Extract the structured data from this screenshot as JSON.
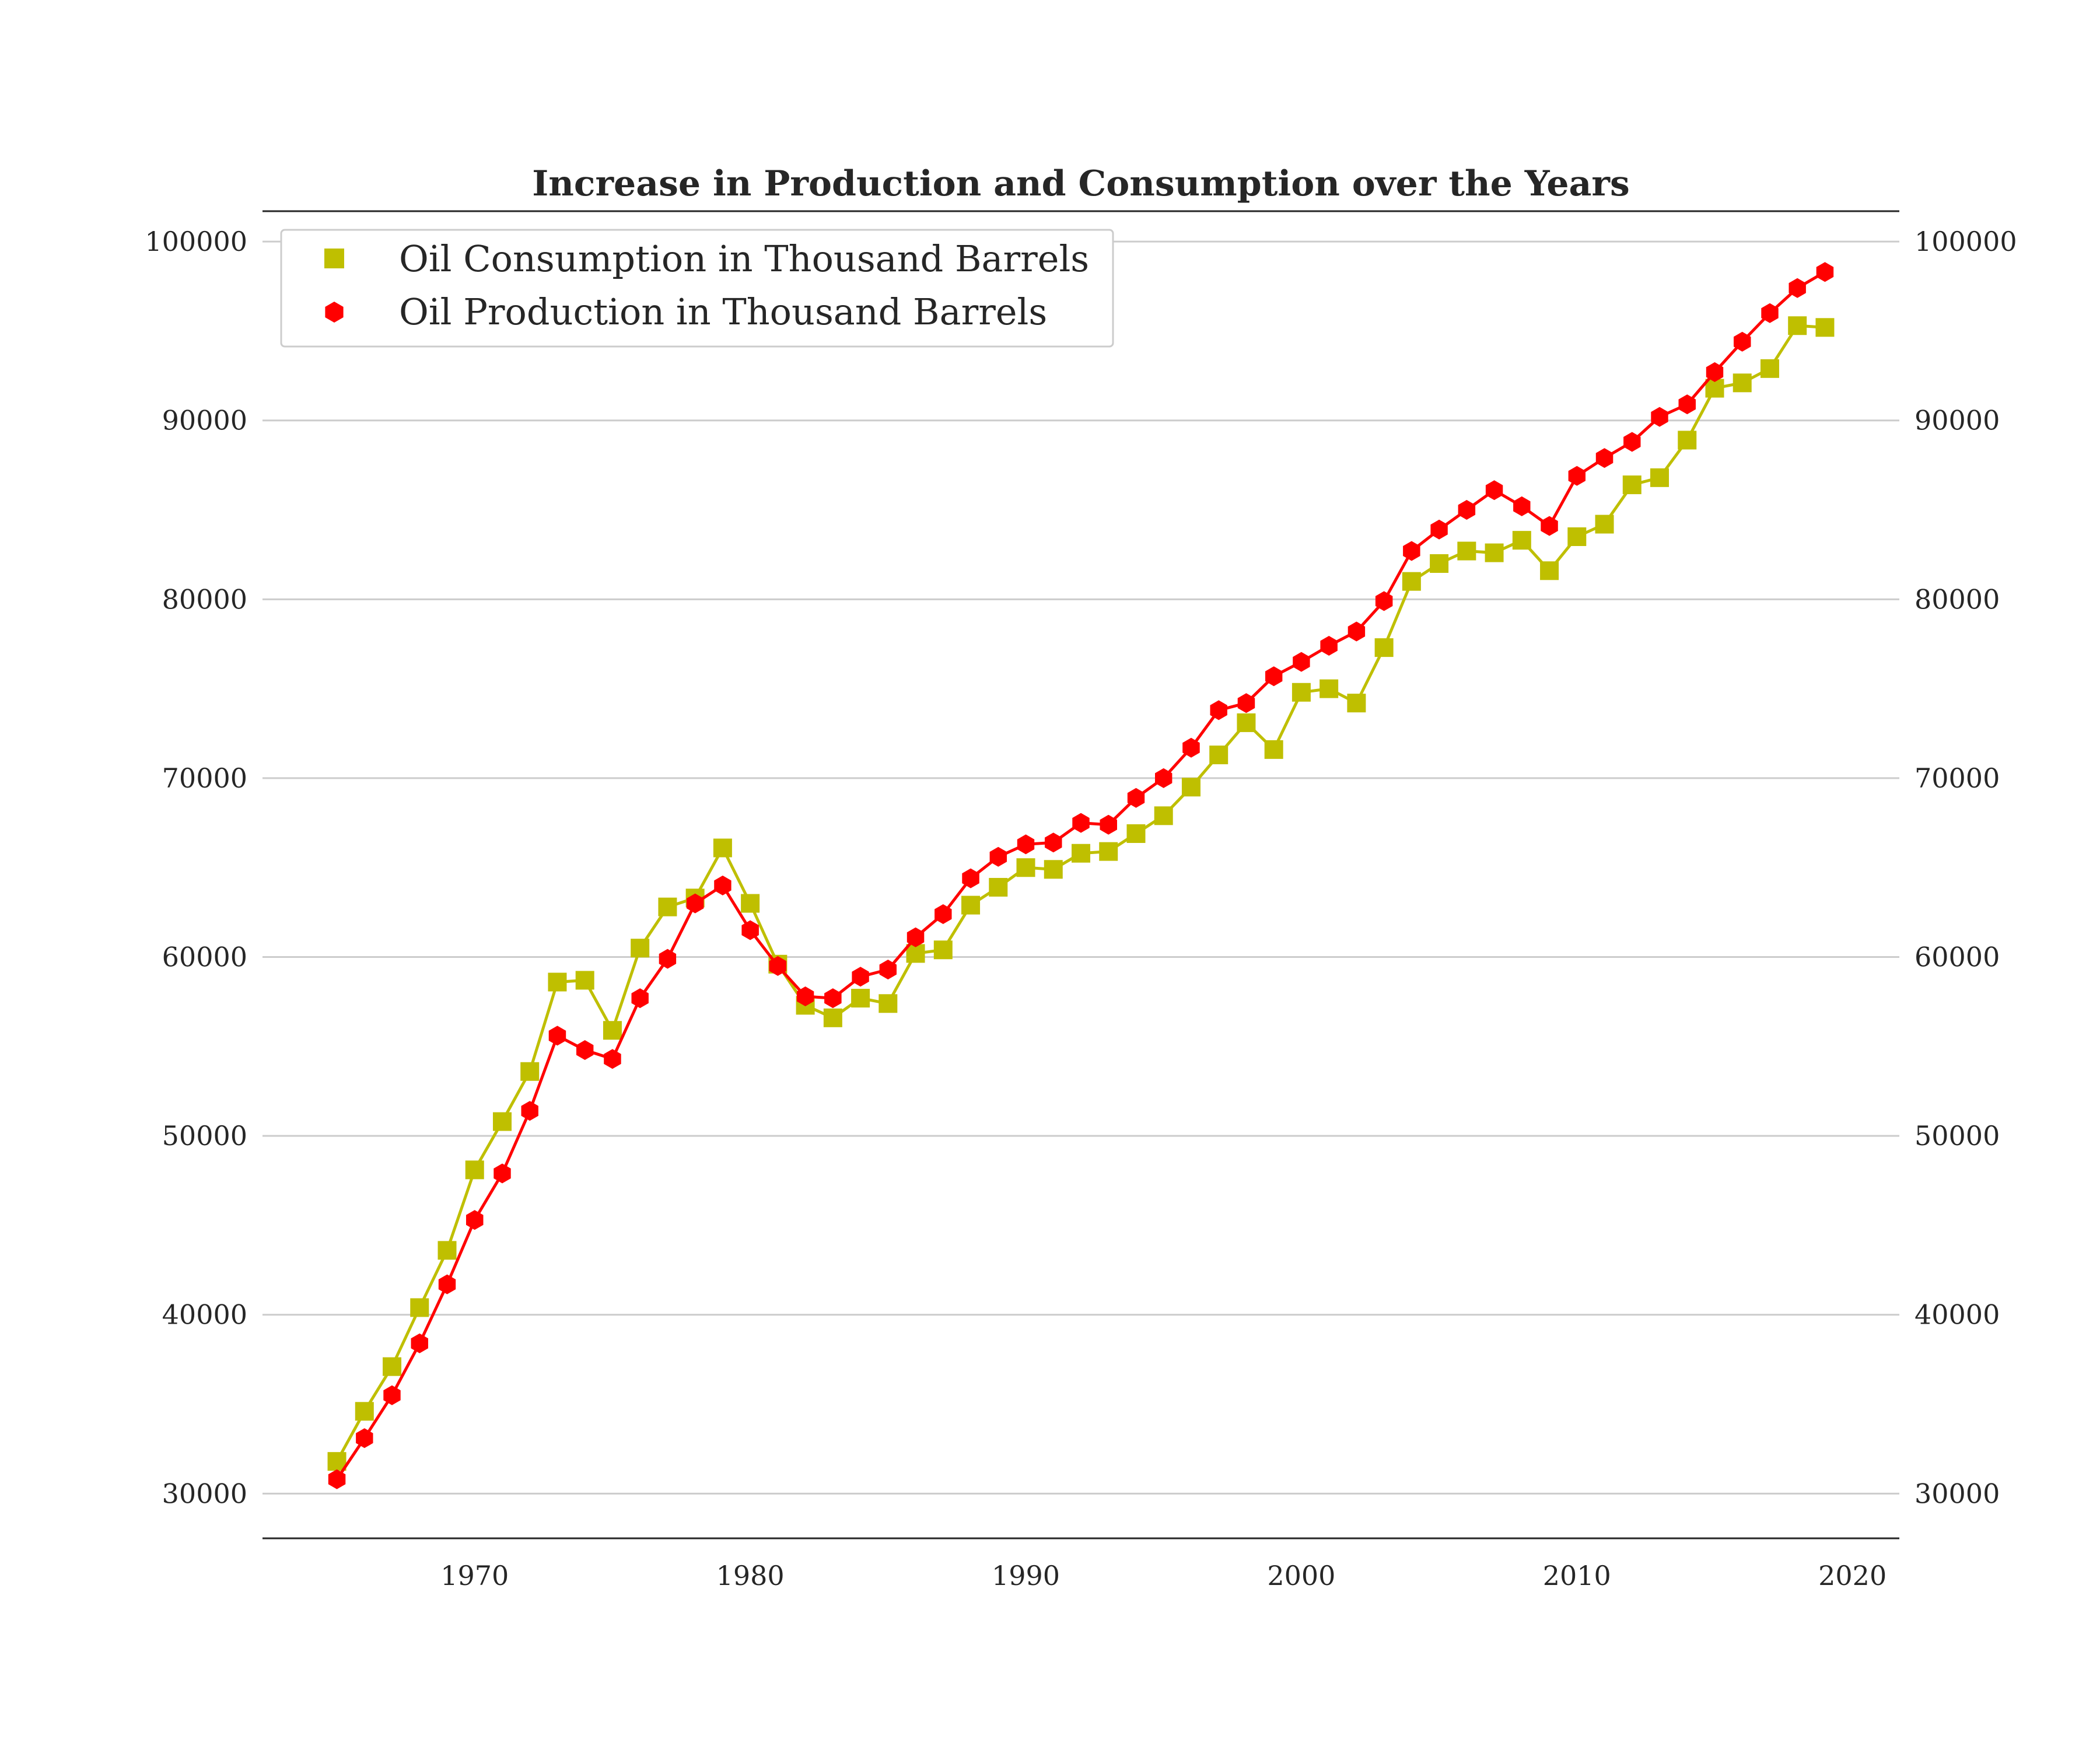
{
  "chart_data": {
    "type": "line",
    "title": "Increase in Production and Consumption over the Years",
    "xlabel": "",
    "ylabel": "",
    "x": [
      1965,
      1966,
      1967,
      1968,
      1969,
      1970,
      1971,
      1972,
      1973,
      1974,
      1975,
      1976,
      1977,
      1978,
      1979,
      1980,
      1981,
      1982,
      1983,
      1984,
      1985,
      1986,
      1987,
      1988,
      1989,
      1990,
      1991,
      1992,
      1993,
      1994,
      1995,
      1996,
      1997,
      1998,
      1999,
      2000,
      2001,
      2002,
      2003,
      2004,
      2005,
      2006,
      2007,
      2008,
      2009,
      2010,
      2011,
      2012,
      2013,
      2014,
      2015,
      2016,
      2017,
      2018,
      2019
    ],
    "xlim": [
      1962.3,
      2021.7
    ],
    "ylim": [
      27500,
      101700
    ],
    "x_ticks": [
      1970,
      1980,
      1990,
      2000,
      2010,
      2020
    ],
    "y_ticks": [
      30000,
      40000,
      50000,
      60000,
      70000,
      80000,
      90000,
      100000
    ],
    "grid": "horizontal",
    "right_axis_labels": true,
    "legend_position": "upper-left",
    "series": [
      {
        "name": "Oil Consumption in Thousand Barrels",
        "color": "#bfbf00",
        "marker": "square",
        "values": [
          31800,
          34600,
          37100,
          40400,
          43600,
          48100,
          50800,
          53600,
          58600,
          58700,
          55900,
          60500,
          62800,
          63300,
          66100,
          63000,
          59600,
          57300,
          56600,
          57700,
          57400,
          60200,
          60400,
          62900,
          63900,
          65000,
          64900,
          65800,
          65900,
          66900,
          67900,
          69500,
          71300,
          73100,
          71600,
          74800,
          75000,
          74200,
          77300,
          81000,
          82000,
          82700,
          82600,
          83300,
          81600,
          83500,
          84200,
          86400,
          86800,
          88900,
          91800,
          92100,
          92900,
          95300,
          95200
        ]
      },
      {
        "name": "Oil Production in Thousand Barrels",
        "color": "#ff0000",
        "marker": "hexagon",
        "values": [
          30800,
          33100,
          35500,
          38400,
          41700,
          45300,
          47900,
          51400,
          55600,
          54800,
          54300,
          57700,
          59900,
          63000,
          64000,
          61500,
          59500,
          57800,
          57700,
          58900,
          59300,
          61100,
          62400,
          64400,
          65600,
          66300,
          66400,
          67500,
          67400,
          68900,
          70000,
          71700,
          73800,
          74200,
          75700,
          76500,
          77400,
          78200,
          79900,
          82700,
          83900,
          85000,
          86100,
          85200,
          84100,
          86900,
          87900,
          88800,
          90200,
          90900,
          92700,
          94400,
          96000,
          97400,
          98300
        ]
      }
    ]
  }
}
